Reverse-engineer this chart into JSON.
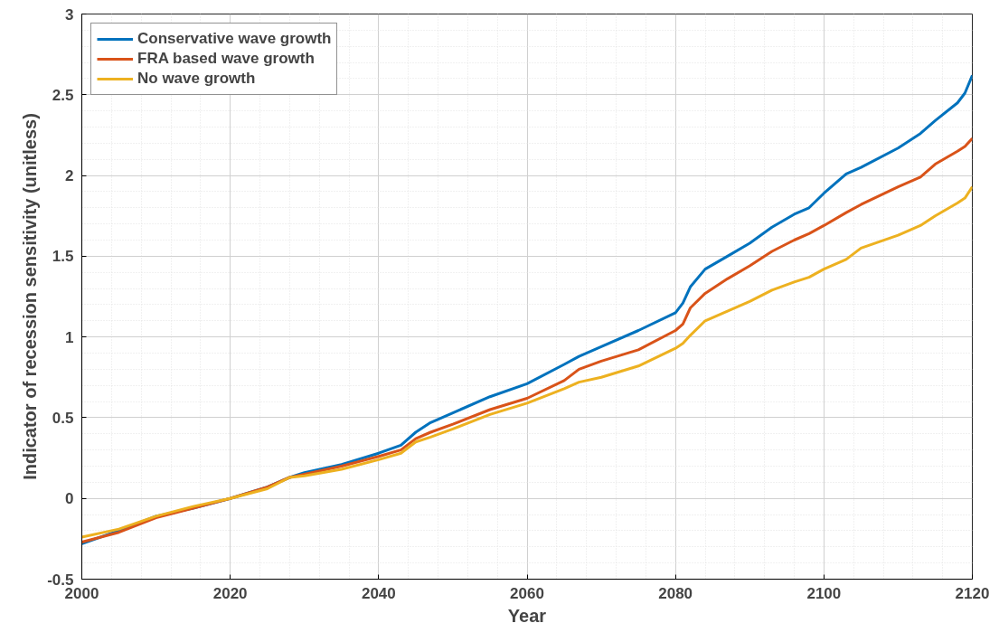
{
  "chart_data": {
    "type": "line",
    "xlabel": "Year",
    "ylabel": "Indicator of recession sensitivity (unitless)",
    "xlim": [
      2000,
      2120
    ],
    "ylim": [
      -0.5,
      3
    ],
    "xticks": [
      2000,
      2020,
      2040,
      2060,
      2080,
      2100,
      2120
    ],
    "yticks": [
      -0.5,
      0,
      0.5,
      1,
      1.5,
      2,
      2.5,
      3
    ],
    "grid": true,
    "legend": "top left",
    "line_style": "solid",
    "marker": "none",
    "x": [
      2000,
      2005,
      2010,
      2015,
      2020,
      2025,
      2028,
      2030,
      2035,
      2040,
      2043,
      2045,
      2047,
      2050,
      2055,
      2060,
      2065,
      2067,
      2070,
      2075,
      2080,
      2081,
      2082,
      2084,
      2087,
      2090,
      2093,
      2096,
      2098,
      2100,
      2103,
      2105,
      2110,
      2113,
      2115,
      2118,
      2119,
      2120
    ],
    "series": [
      {
        "name": "Conservative wave growth",
        "color": "#0072bd",
        "values": [
          -0.28,
          -0.2,
          -0.11,
          -0.06,
          0.0,
          0.07,
          0.13,
          0.16,
          0.21,
          0.28,
          0.33,
          0.41,
          0.47,
          0.53,
          0.63,
          0.71,
          0.83,
          0.88,
          0.94,
          1.04,
          1.15,
          1.21,
          1.31,
          1.42,
          1.5,
          1.58,
          1.68,
          1.76,
          1.8,
          1.89,
          2.01,
          2.05,
          2.17,
          2.26,
          2.34,
          2.45,
          2.51,
          2.62
        ]
      },
      {
        "name": "FRA based wave growth",
        "color": "#d95319",
        "values": [
          -0.27,
          -0.21,
          -0.12,
          -0.06,
          0.0,
          0.07,
          0.13,
          0.15,
          0.2,
          0.26,
          0.3,
          0.37,
          0.41,
          0.46,
          0.55,
          0.62,
          0.73,
          0.8,
          0.85,
          0.92,
          1.04,
          1.08,
          1.18,
          1.27,
          1.36,
          1.44,
          1.53,
          1.6,
          1.64,
          1.69,
          1.77,
          1.82,
          1.93,
          1.99,
          2.07,
          2.15,
          2.18,
          2.23
        ]
      },
      {
        "name": "No wave growth",
        "color": "#edb120",
        "values": [
          -0.24,
          -0.19,
          -0.11,
          -0.05,
          0.0,
          0.06,
          0.13,
          0.14,
          0.18,
          0.24,
          0.28,
          0.35,
          0.38,
          0.43,
          0.52,
          0.59,
          0.68,
          0.72,
          0.75,
          0.82,
          0.93,
          0.96,
          1.01,
          1.1,
          1.16,
          1.22,
          1.29,
          1.34,
          1.37,
          1.42,
          1.48,
          1.55,
          1.63,
          1.69,
          1.75,
          1.83,
          1.86,
          1.93
        ]
      }
    ]
  }
}
